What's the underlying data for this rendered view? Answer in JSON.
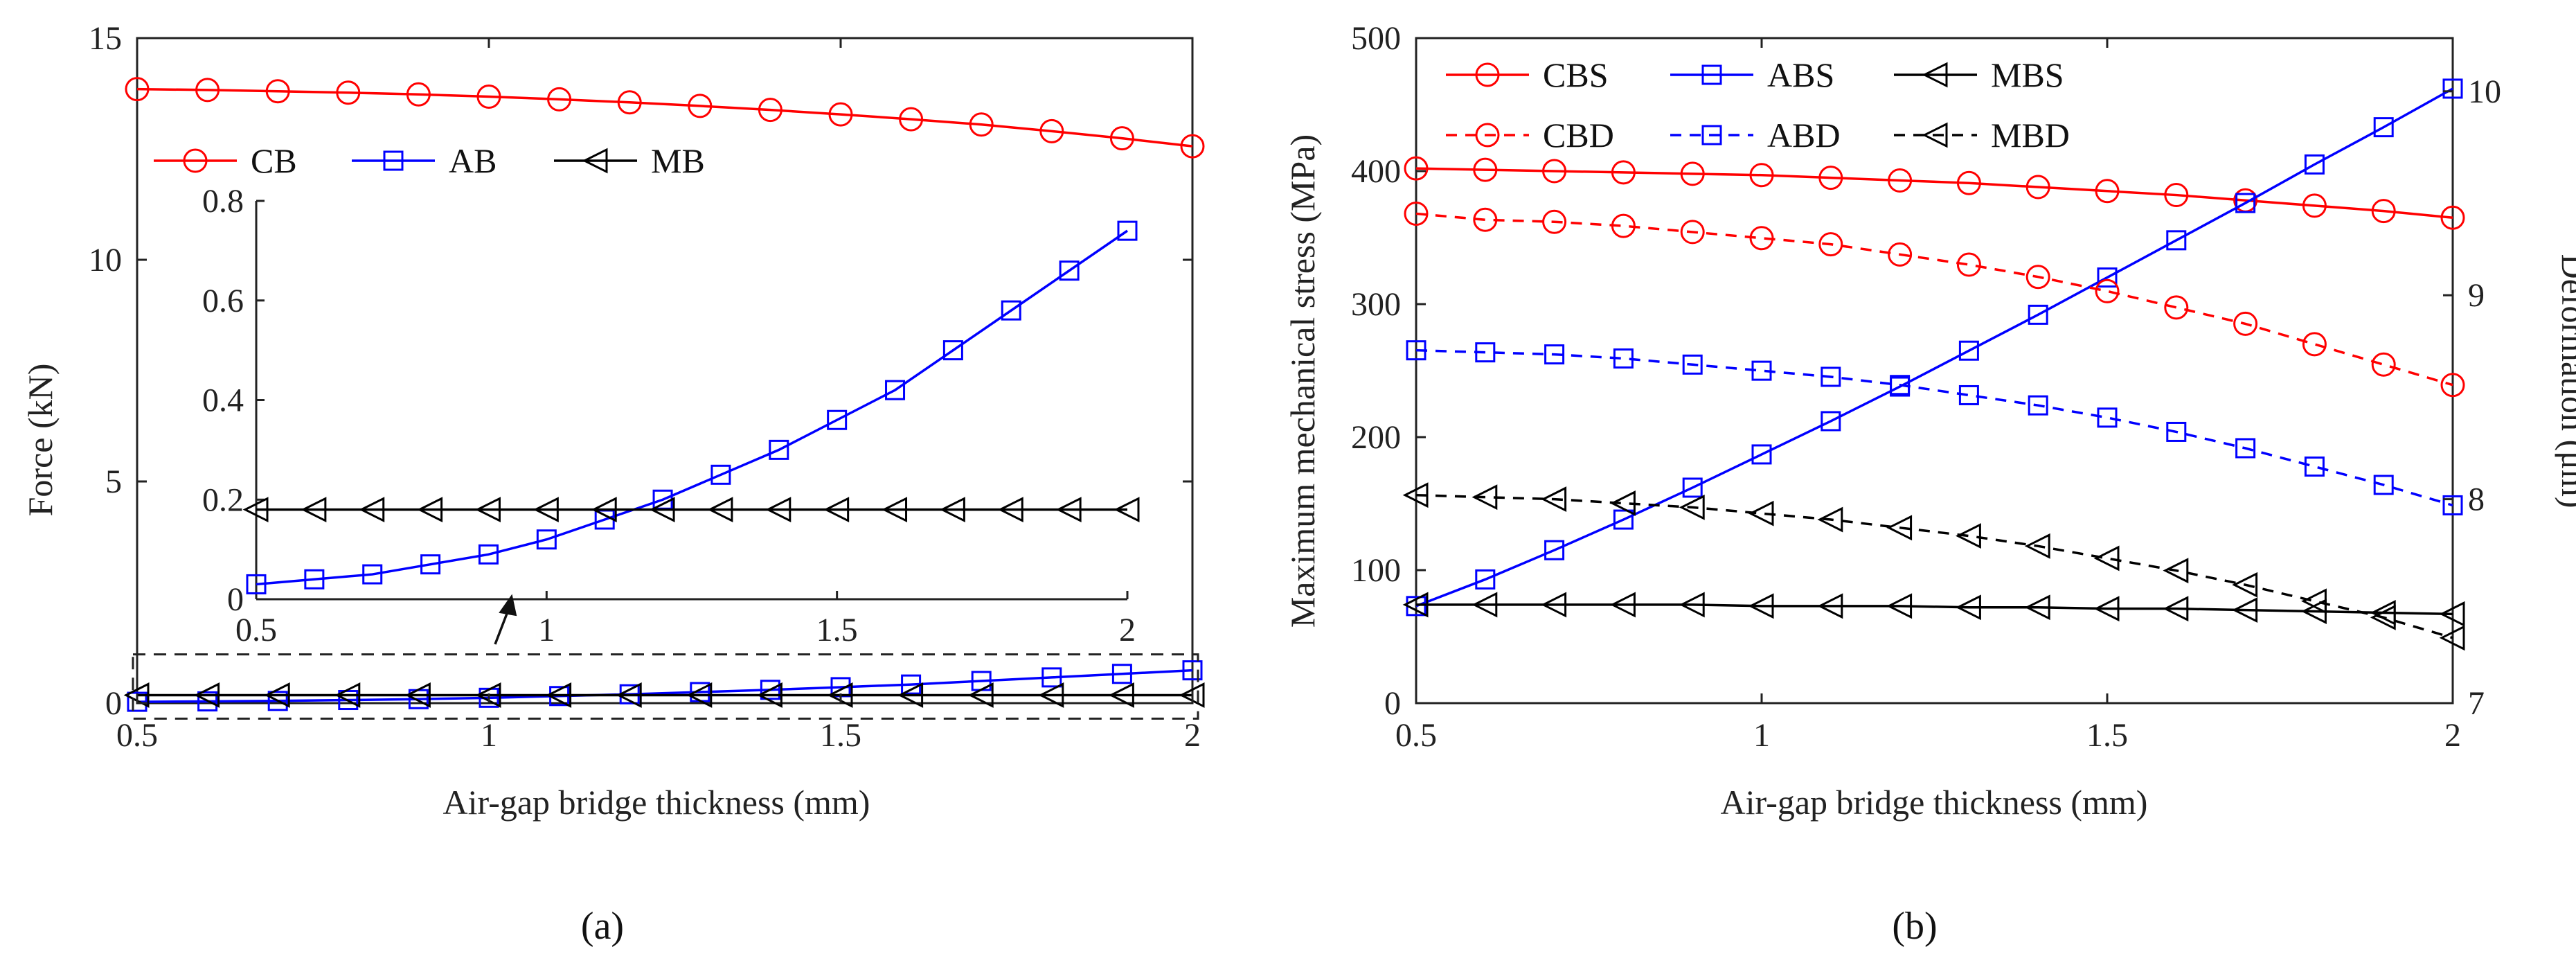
{
  "chart_data": [
    {
      "id": "a",
      "type": "line",
      "panel_label": "(a)",
      "xlabel": "Air-gap bridge thickness (mm)",
      "ylabel": "Force (kN)",
      "xlim": [
        0.5,
        2
      ],
      "ylim": [
        0,
        15
      ],
      "xticks": [
        "0.5",
        "1",
        "1.5",
        "2"
      ],
      "yticks": [
        "0",
        "5",
        "10",
        "15"
      ],
      "x": [
        0.5,
        0.6,
        0.7,
        0.8,
        0.9,
        1.0,
        1.1,
        1.2,
        1.3,
        1.4,
        1.5,
        1.6,
        1.7,
        1.8,
        1.9,
        2.0
      ],
      "series": [
        {
          "name": "CB",
          "color": "#ff0000",
          "marker": "circle",
          "values": [
            13.85,
            13.83,
            13.8,
            13.77,
            13.73,
            13.68,
            13.62,
            13.55,
            13.47,
            13.38,
            13.28,
            13.17,
            13.05,
            12.9,
            12.74,
            12.56
          ]
        },
        {
          "name": "AB",
          "color": "#0000ff",
          "marker": "square",
          "values": [
            0.03,
            0.04,
            0.05,
            0.07,
            0.09,
            0.12,
            0.16,
            0.2,
            0.25,
            0.3,
            0.36,
            0.42,
            0.5,
            0.58,
            0.66,
            0.74
          ]
        },
        {
          "name": "MB",
          "color": "#000000",
          "marker": "triangle",
          "values": [
            0.18,
            0.18,
            0.18,
            0.18,
            0.18,
            0.18,
            0.18,
            0.18,
            0.18,
            0.18,
            0.18,
            0.18,
            0.18,
            0.18,
            0.18,
            0.18
          ]
        }
      ],
      "zoom_box": {
        "xlim": [
          0.5,
          2
        ],
        "ylim": [
          -0.35,
          1.1
        ]
      },
      "inset": {
        "xlim": [
          0.5,
          2
        ],
        "ylim": [
          0,
          0.8
        ],
        "xticks": [
          "0.5",
          "1",
          "1.5",
          "2"
        ],
        "yticks": [
          "0",
          "0.2",
          "0.4",
          "0.6",
          "0.8"
        ],
        "series": [
          {
            "name": "AB",
            "values": [
              0.03,
              0.04,
              0.05,
              0.07,
              0.09,
              0.12,
              0.16,
              0.2,
              0.25,
              0.3,
              0.36,
              0.42,
              0.5,
              0.58,
              0.66,
              0.74
            ]
          },
          {
            "name": "MB",
            "values": [
              0.18,
              0.18,
              0.18,
              0.18,
              0.18,
              0.18,
              0.18,
              0.18,
              0.18,
              0.18,
              0.18,
              0.18,
              0.18,
              0.18,
              0.18,
              0.18
            ]
          }
        ]
      }
    },
    {
      "id": "b",
      "type": "line",
      "panel_label": "(b)",
      "xlabel": "Air-gap bridge thickness (mm)",
      "ylabel": "Maximum mechanical stress (MPa)",
      "ylabel_right": "Deformation (μm)",
      "xlim": [
        0.5,
        2
      ],
      "ylim": [
        0,
        500
      ],
      "ylim_right": [
        7,
        10
      ],
      "xticks": [
        "0.5",
        "1",
        "1.5",
        "2"
      ],
      "yticks": [
        "0",
        "100",
        "200",
        "300",
        "400",
        "500"
      ],
      "yticks_right": [
        "7",
        "8",
        "9",
        "10"
      ],
      "x": [
        0.5,
        0.6,
        0.7,
        0.8,
        0.9,
        1.0,
        1.1,
        1.2,
        1.3,
        1.4,
        1.5,
        1.6,
        1.7,
        1.8,
        1.9,
        2.0
      ],
      "series": [
        {
          "name": "CBS",
          "color": "#ff0000",
          "marker": "circle",
          "dash": false,
          "axis": "left",
          "values": [
            402,
            401,
            400,
            399,
            398,
            397,
            395,
            393,
            391,
            388,
            385,
            382,
            378,
            374,
            370,
            365
          ]
        },
        {
          "name": "ABS",
          "color": "#0000ff",
          "marker": "square",
          "dash": false,
          "axis": "left",
          "values": [
            73,
            93,
            115,
            138,
            162,
            187,
            212,
            238,
            265,
            292,
            320,
            348,
            376,
            405,
            433,
            462
          ]
        },
        {
          "name": "MBS",
          "color": "#000000",
          "marker": "triangle",
          "dash": false,
          "axis": "left",
          "values": [
            74,
            74,
            74,
            74,
            74,
            73,
            73,
            73,
            72,
            72,
            71,
            71,
            70,
            69,
            68,
            67
          ]
        },
        {
          "name": "CBD",
          "color": "#ff0000",
          "marker": "circle",
          "dash": true,
          "axis": "right",
          "values": [
            9.4,
            9.37,
            9.36,
            9.34,
            9.31,
            9.28,
            9.25,
            9.2,
            9.15,
            9.09,
            9.02,
            8.94,
            8.86,
            8.76,
            8.66,
            8.56
          ]
        },
        {
          "name": "ABD",
          "color": "#0000ff",
          "marker": "square",
          "dash": true,
          "axis": "right",
          "values": [
            8.73,
            8.72,
            8.71,
            8.69,
            8.66,
            8.63,
            8.6,
            8.56,
            8.51,
            8.46,
            8.4,
            8.33,
            8.25,
            8.16,
            8.07,
            7.97
          ]
        },
        {
          "name": "MBD",
          "color": "#000000",
          "marker": "triangle",
          "dash": true,
          "axis": "right",
          "values": [
            8.02,
            8.01,
            8.0,
            7.98,
            7.96,
            7.93,
            7.9,
            7.86,
            7.82,
            7.77,
            7.71,
            7.65,
            7.58,
            7.5,
            7.42,
            7.32
          ]
        }
      ]
    }
  ]
}
